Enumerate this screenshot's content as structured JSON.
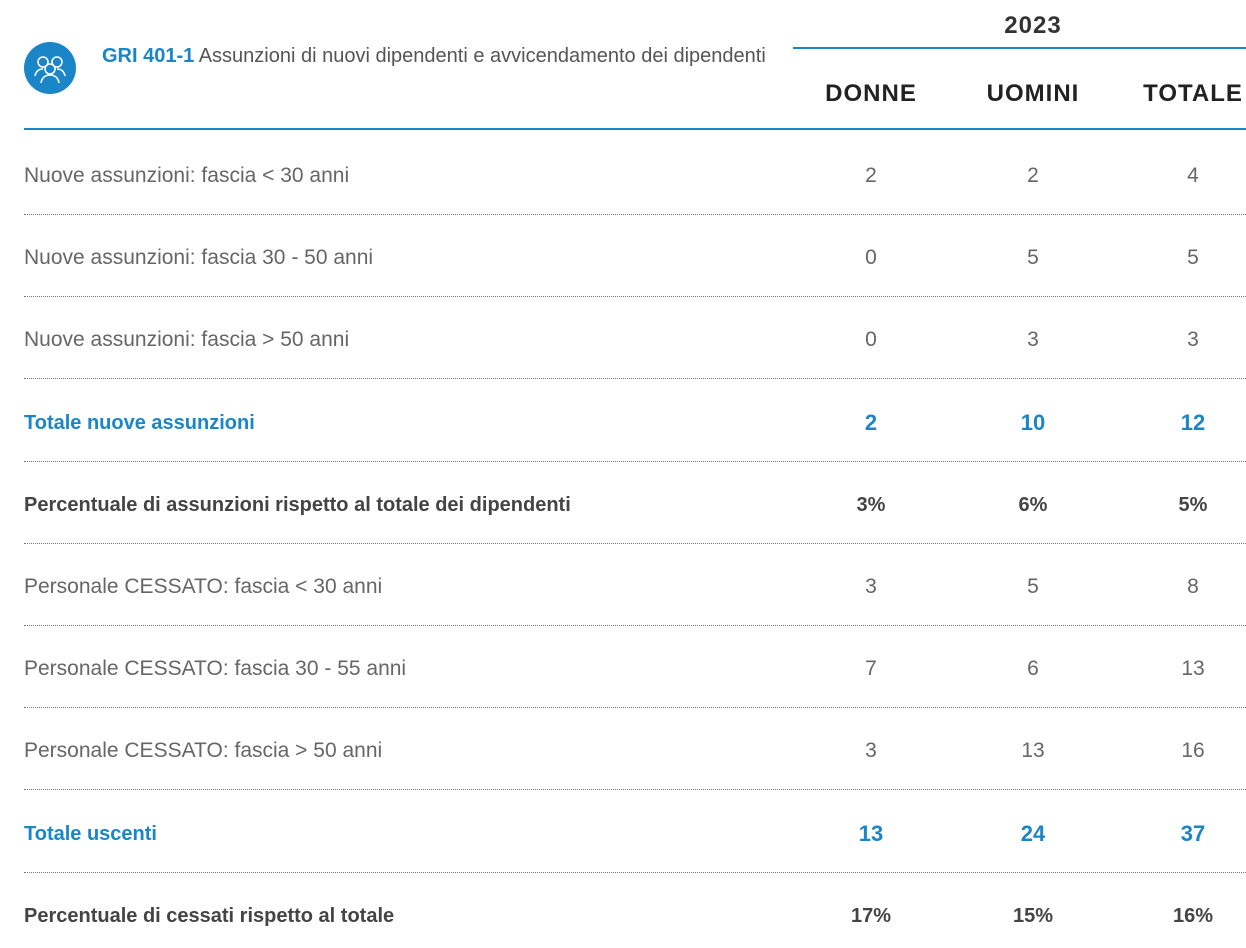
{
  "header": {
    "code": "GRI 401-1",
    "title": "Assunzioni di nuovi dipendenti e avvicendamento dei dipendenti",
    "year": "2023",
    "columns": [
      "DONNE",
      "UOMINI",
      "TOTALE"
    ]
  },
  "table": {
    "rows": [
      [
        "Nuove assunzioni: fascia < 30 anni",
        "2",
        "2",
        "4"
      ],
      [
        "Nuove assunzioni: fascia 30 - 50 anni",
        "0",
        "5",
        "5"
      ],
      [
        "Nuove assunzioni: fascia > 50 anni",
        "0",
        "3",
        "3"
      ],
      [
        "Totale nuove assunzioni",
        "2",
        "10",
        "12"
      ],
      [
        "Percentuale di assunzioni rispetto al totale dei dipendenti",
        "3%",
        "6%",
        "5%"
      ],
      [
        "Personale CESSATO: fascia < 30 anni",
        "3",
        "5",
        "8"
      ],
      [
        "Personale CESSATO: fascia 30 - 55 anni",
        "7",
        "6",
        "13"
      ],
      [
        "Personale CESSATO: fascia > 50 anni",
        "3",
        "13",
        "16"
      ],
      [
        "Totale  uscenti",
        "13",
        "24",
        "37"
      ],
      [
        "Percentuale di cessati rispetto al totale",
        "17%",
        "15%",
        "16%"
      ]
    ]
  }
}
